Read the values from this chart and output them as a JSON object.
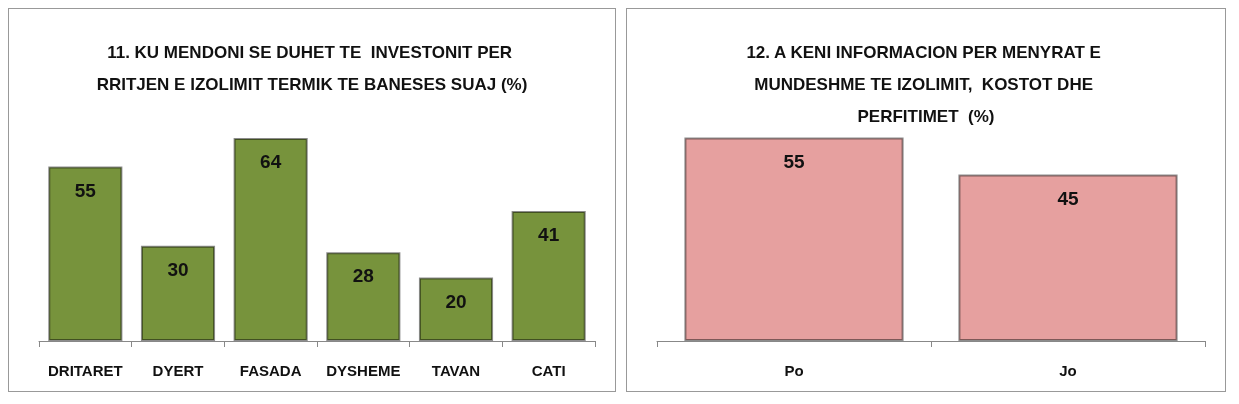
{
  "chart_data": [
    {
      "type": "bar",
      "title": "11. KU MENDONI SE DUHET TE  INVESTONIT PER RRITJEN E IZOLIMIT TERMIK TE BANESES SUAJ (%)",
      "categories": [
        "DRITARET",
        "DYERT",
        "FASADA",
        "DYSHEME",
        "TAVAN",
        "CATI"
      ],
      "values": [
        55,
        30,
        64,
        28,
        20,
        41
      ],
      "color": "#77933c",
      "data_labels": true
    },
    {
      "type": "bar",
      "title": "12. A KENI INFORMACION PER MENYRAT E MUNDESHME TE IZOLIMIT,  KOSTOT DHE PERFITIMET  (%)",
      "categories": [
        "Po",
        "Jo"
      ],
      "values": [
        55,
        45
      ],
      "color": "#e6a09f",
      "data_labels": true
    }
  ]
}
